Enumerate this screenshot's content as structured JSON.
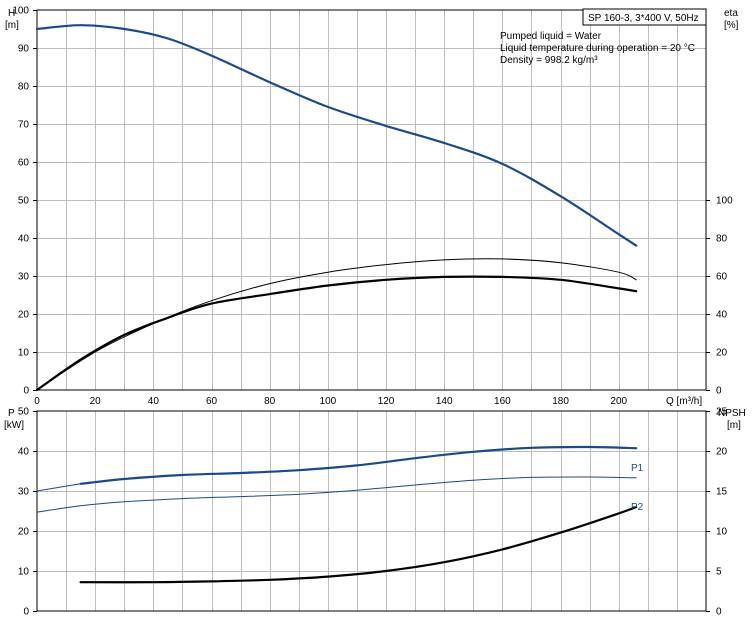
{
  "header": {
    "title": "SP 160-3, 3*400 V, 50Hz",
    "info_lines": [
      "Pumped liquid = Water",
      "Liquid temperature during operation = 20 °C",
      "Density = 998.2 kg/m³"
    ]
  },
  "labels": {
    "h_axis": "H",
    "h_unit": "[m]",
    "eta_axis": "eta",
    "eta_unit": "[%]",
    "q_axis": "Q [m³/h]",
    "p_axis": "P",
    "p_unit": "[kW]",
    "npsh_axis": "NPSH",
    "npsh_unit": "[m]",
    "p1": "P1",
    "p2": "P2"
  },
  "colors": {
    "curve_blue": "#1a4a8a",
    "curve_black": "#000000",
    "grid": "#bdbdbd"
  },
  "chart_data": [
    {
      "type": "line",
      "x_ticks": [
        0,
        20,
        40,
        60,
        80,
        100,
        120,
        140,
        160,
        180,
        200
      ],
      "y_ticks_left": [
        0,
        10,
        20,
        30,
        40,
        50,
        60,
        70,
        80,
        90,
        100
      ],
      "y_ticks_right": [
        0,
        20,
        40,
        60,
        80,
        100
      ],
      "xlim": [
        0,
        230
      ],
      "ylim_left": [
        0,
        100
      ],
      "ylim_right": [
        0,
        200
      ],
      "grid": true,
      "series": [
        {
          "id": "head",
          "axis": "left",
          "color": "#1a4a8a",
          "width": 2.2,
          "x": [
            0,
            15,
            30,
            45,
            60,
            80,
            100,
            120,
            140,
            160,
            180,
            200,
            206
          ],
          "y": [
            95,
            96,
            95,
            92.5,
            88,
            81,
            74.5,
            69.5,
            65,
            59.5,
            51,
            41,
            38
          ]
        },
        {
          "id": "eta-thin",
          "axis": "right",
          "color": "#000000",
          "width": 1,
          "x": [
            0,
            20,
            40,
            60,
            80,
            100,
            120,
            140,
            160,
            180,
            200,
            206
          ],
          "y": [
            0,
            20,
            35,
            47,
            56,
            62,
            66,
            68.5,
            69,
            67,
            62,
            58
          ]
        },
        {
          "id": "eta-thick",
          "axis": "right",
          "color": "#000000",
          "width": 2.2,
          "x": [
            0,
            15,
            30,
            45,
            60,
            80,
            100,
            120,
            140,
            160,
            180,
            200,
            206
          ],
          "y": [
            0,
            16,
            29,
            38,
            45.5,
            50.5,
            55,
            58,
            59.5,
            59.5,
            58,
            53.5,
            52
          ]
        }
      ]
    },
    {
      "type": "line",
      "x_ticks": [
        0,
        20,
        40,
        60,
        80,
        100,
        120,
        140,
        160,
        180,
        200
      ],
      "y_ticks_left": [
        0,
        10,
        20,
        30,
        40,
        50
      ],
      "y_ticks_right": [
        0,
        5,
        10,
        15,
        20,
        25
      ],
      "xlim": [
        0,
        230
      ],
      "ylim_left": [
        0,
        50
      ],
      "ylim_right": [
        0,
        25
      ],
      "grid": true,
      "series": [
        {
          "id": "p1",
          "name": "P1",
          "axis": "left",
          "color": "#1a4a8a",
          "width": 2.2,
          "x": [
            15,
            30,
            50,
            70,
            90,
            110,
            130,
            150,
            170,
            190,
            206
          ],
          "y": [
            31.8,
            33,
            34,
            34.5,
            35.2,
            36.4,
            38.2,
            39.8,
            40.8,
            41,
            40.7
          ]
        },
        {
          "id": "p1-ext",
          "axis": "left",
          "color": "#1a4a8a",
          "width": 1,
          "x": [
            0,
            15
          ],
          "y": [
            30,
            31.8
          ]
        },
        {
          "id": "p2",
          "name": "P2",
          "axis": "left",
          "color": "#1a4a8a",
          "width": 1,
          "x": [
            0,
            15,
            30,
            50,
            70,
            90,
            110,
            130,
            150,
            170,
            190,
            206
          ],
          "y": [
            24.7,
            26.3,
            27.3,
            28.1,
            28.6,
            29.2,
            30.2,
            31.5,
            32.7,
            33.4,
            33.5,
            33.3
          ]
        },
        {
          "id": "npsh",
          "axis": "right",
          "color": "#000000",
          "width": 2.2,
          "x": [
            15,
            40,
            60,
            80,
            100,
            120,
            140,
            160,
            180,
            200,
            206
          ],
          "y": [
            3.6,
            3.6,
            3.7,
            3.9,
            4.3,
            5,
            6.1,
            7.7,
            9.8,
            12.2,
            13
          ]
        }
      ]
    }
  ]
}
